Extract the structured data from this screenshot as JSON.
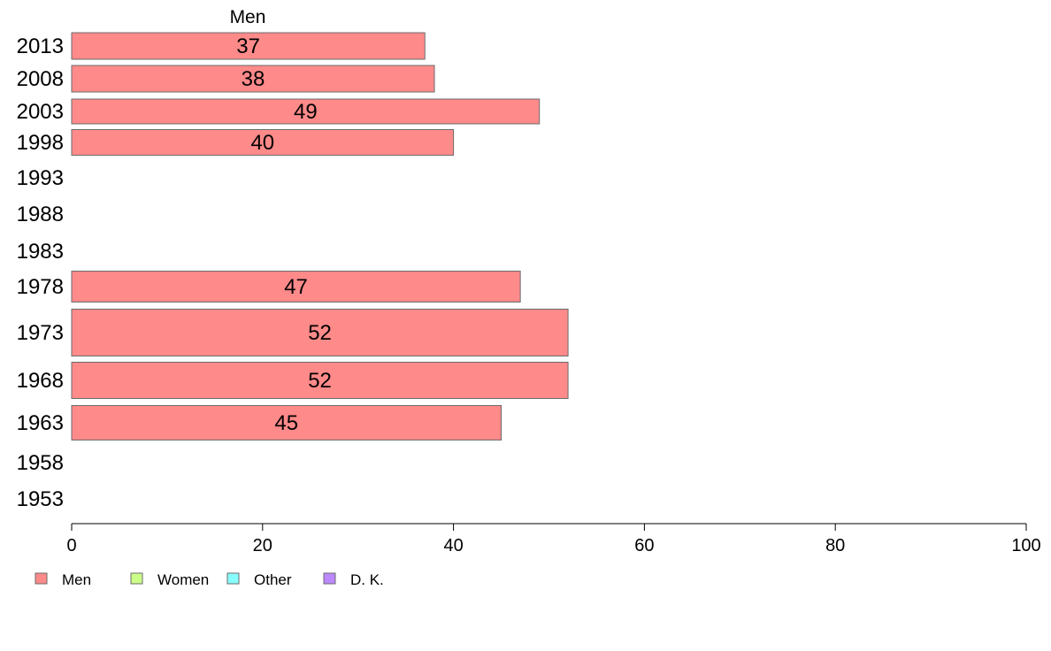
{
  "chart_data": {
    "type": "bar",
    "orientation": "horizontal",
    "panel_title": "Men",
    "categories": [
      "2013",
      "2008",
      "2003",
      "1998",
      "1993",
      "1988",
      "1983",
      "1978",
      "1973",
      "1968",
      "1963",
      "1958",
      "1953"
    ],
    "series": [
      {
        "name": "Men",
        "color": "#ff8a8a",
        "values": [
          37,
          38,
          49,
          40,
          null,
          null,
          null,
          47,
          52,
          52,
          45,
          null,
          null
        ]
      }
    ],
    "xlim": [
      0,
      100
    ],
    "xticks": [
      0,
      20,
      40,
      60,
      80,
      100
    ],
    "grid": false,
    "legend": {
      "placement": "bottom-left",
      "entries": [
        {
          "label": "Men",
          "color": "#ff8a8a"
        },
        {
          "label": "Women",
          "color": "#ccff88"
        },
        {
          "label": "Other",
          "color": "#88ffff"
        },
        {
          "label": "D. K.",
          "color": "#bb88ff"
        }
      ]
    }
  }
}
